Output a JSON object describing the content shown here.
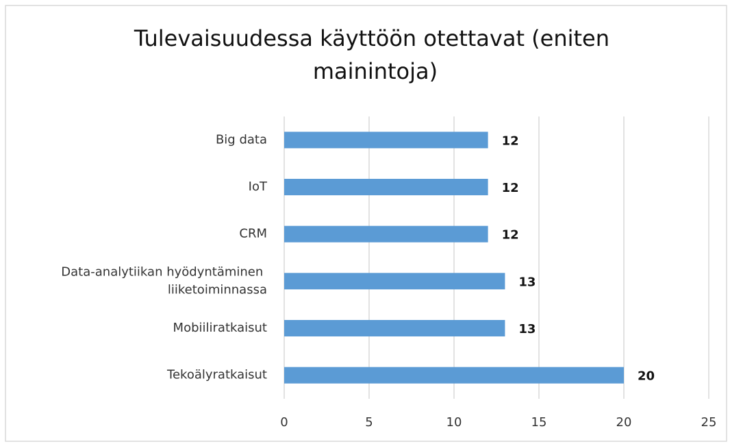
{
  "chart_data": {
    "type": "bar",
    "orientation": "horizontal",
    "title": "Tulevaisuudessa käyttöön otettavat (eniten mainintoja)",
    "categories": [
      "Big data",
      "IoT",
      "CRM",
      "Data-analytiikan hyödyntäminen liiketoiminnassa",
      "Mobiiliratkaisut",
      "Tekoälyratkaisut"
    ],
    "values": [
      12,
      12,
      12,
      13,
      13,
      20
    ],
    "color": "#5b9bd5",
    "xlim": [
      0,
      25
    ],
    "xticks": [
      0,
      5,
      10,
      15,
      20,
      25
    ],
    "grid": true
  }
}
